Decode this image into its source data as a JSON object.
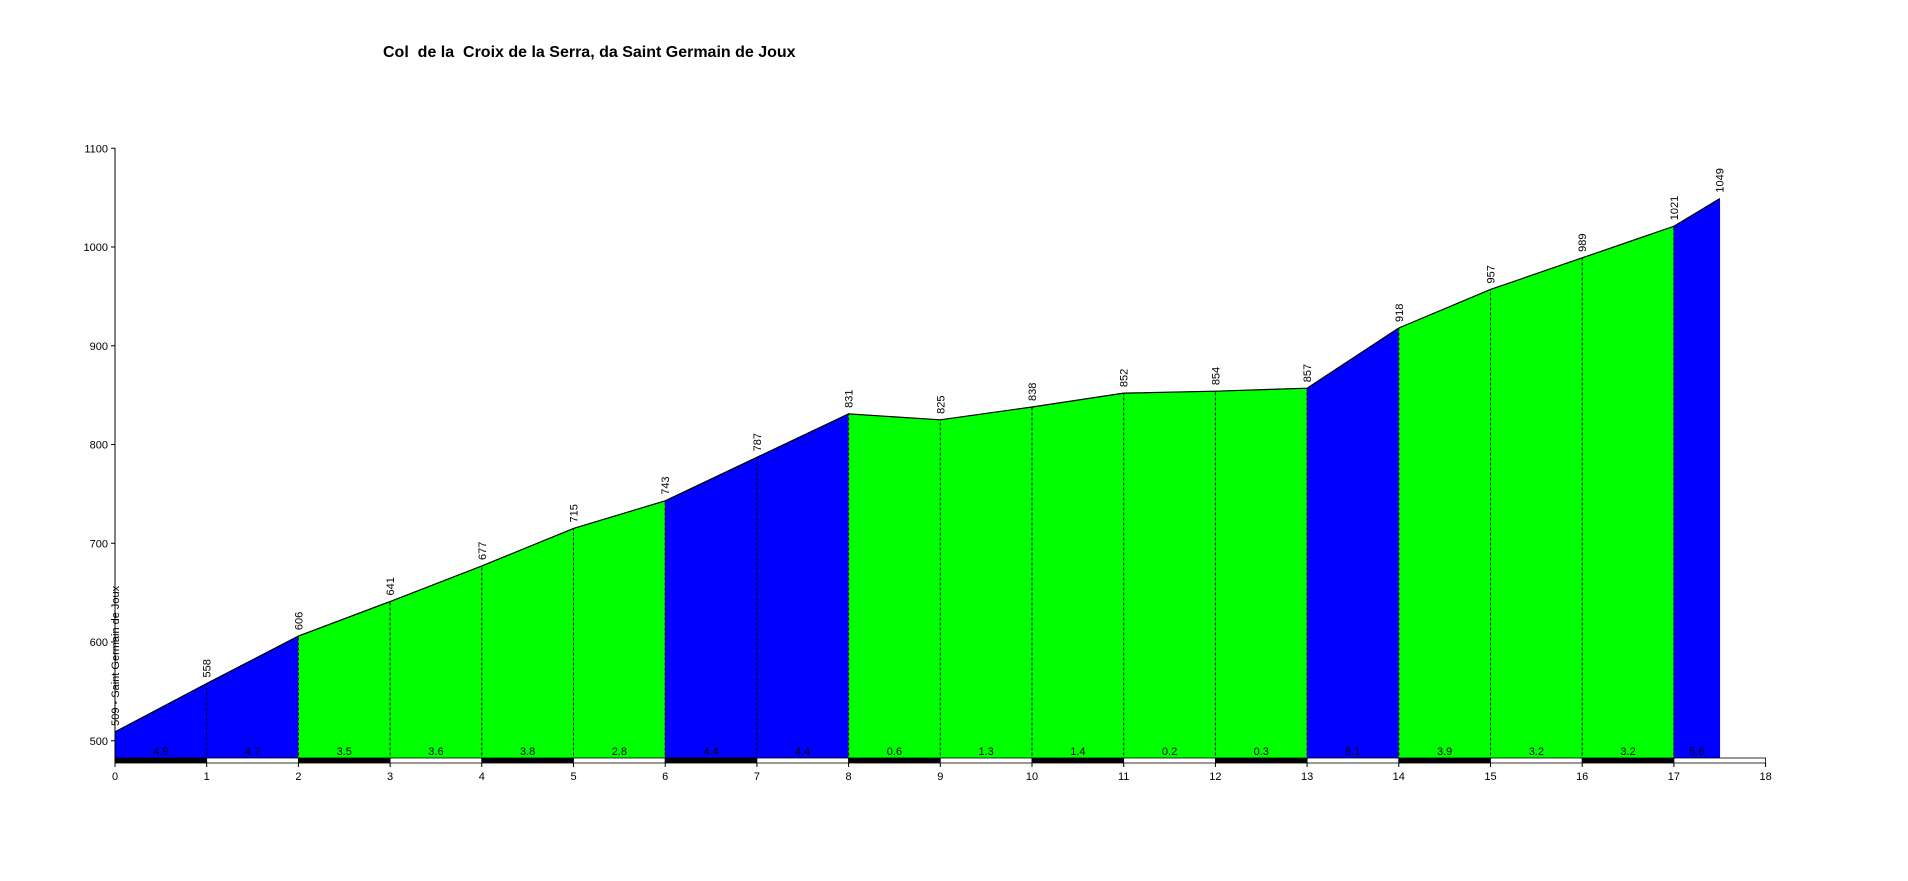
{
  "chart_data": {
    "type": "area",
    "title": "Col  de la  Croix de la Serra, da Saint Germain de Joux",
    "start_label": "509 - Saint Germain de Joux",
    "xlabel": "",
    "ylabel": "",
    "xlim": [
      0,
      18
    ],
    "ylim": [
      480,
      1100
    ],
    "x_ticks": [
      0,
      1,
      2,
      3,
      4,
      5,
      6,
      7,
      8,
      9,
      10,
      11,
      12,
      13,
      14,
      15,
      16,
      17,
      18
    ],
    "y_ticks": [
      500,
      600,
      700,
      800,
      900,
      1000,
      1100
    ],
    "grid": false,
    "points": [
      {
        "km": 0,
        "elev": 509
      },
      {
        "km": 1,
        "elev": 558
      },
      {
        "km": 2,
        "elev": 606
      },
      {
        "km": 3,
        "elev": 641
      },
      {
        "km": 4,
        "elev": 677
      },
      {
        "km": 5,
        "elev": 715
      },
      {
        "km": 6,
        "elev": 743
      },
      {
        "km": 7,
        "elev": 787
      },
      {
        "km": 8,
        "elev": 831
      },
      {
        "km": 9,
        "elev": 825
      },
      {
        "km": 10,
        "elev": 838
      },
      {
        "km": 11,
        "elev": 852
      },
      {
        "km": 12,
        "elev": 854
      },
      {
        "km": 13,
        "elev": 857
      },
      {
        "km": 14,
        "elev": 918
      },
      {
        "km": 15,
        "elev": 957
      },
      {
        "km": 16,
        "elev": 989
      },
      {
        "km": 17,
        "elev": 1021
      },
      {
        "km": 17.5,
        "elev": 1049
      }
    ],
    "segments": [
      {
        "from": 0,
        "to": 1,
        "grade": "4.9",
        "color": "#0000ff"
      },
      {
        "from": 1,
        "to": 2,
        "grade": "4.7",
        "color": "#0000ff"
      },
      {
        "from": 2,
        "to": 3,
        "grade": "3.5",
        "color": "#00ff00"
      },
      {
        "from": 3,
        "to": 4,
        "grade": "3.6",
        "color": "#00ff00"
      },
      {
        "from": 4,
        "to": 5,
        "grade": "3.8",
        "color": "#00ff00"
      },
      {
        "from": 5,
        "to": 6,
        "grade": "2.8",
        "color": "#00ff00"
      },
      {
        "from": 6,
        "to": 7,
        "grade": "4.4",
        "color": "#0000ff"
      },
      {
        "from": 7,
        "to": 8,
        "grade": "4.4",
        "color": "#0000ff"
      },
      {
        "from": 8,
        "to": 9,
        "grade": "0.6",
        "color": "#00ff00"
      },
      {
        "from": 9,
        "to": 10,
        "grade": "1.3",
        "color": "#00ff00"
      },
      {
        "from": 10,
        "to": 11,
        "grade": "1.4",
        "color": "#00ff00"
      },
      {
        "from": 11,
        "to": 12,
        "grade": "0.2",
        "color": "#00ff00"
      },
      {
        "from": 12,
        "to": 13,
        "grade": "0.3",
        "color": "#00ff00"
      },
      {
        "from": 13,
        "to": 14,
        "grade": "6.1",
        "color": "#0000ff"
      },
      {
        "from": 14,
        "to": 15,
        "grade": "3.9",
        "color": "#00ff00"
      },
      {
        "from": 15,
        "to": 16,
        "grade": "3.2",
        "color": "#00ff00"
      },
      {
        "from": 16,
        "to": 17,
        "grade": "3.2",
        "color": "#00ff00"
      },
      {
        "from": 17,
        "to": 17.5,
        "grade": "5.6",
        "color": "#0000ff"
      }
    ],
    "colors": {
      "steep": "#0000ff",
      "moderate": "#00ff00",
      "axis": "#000000",
      "bar_dark": "#000000",
      "bar_light": "#ffffff"
    }
  }
}
